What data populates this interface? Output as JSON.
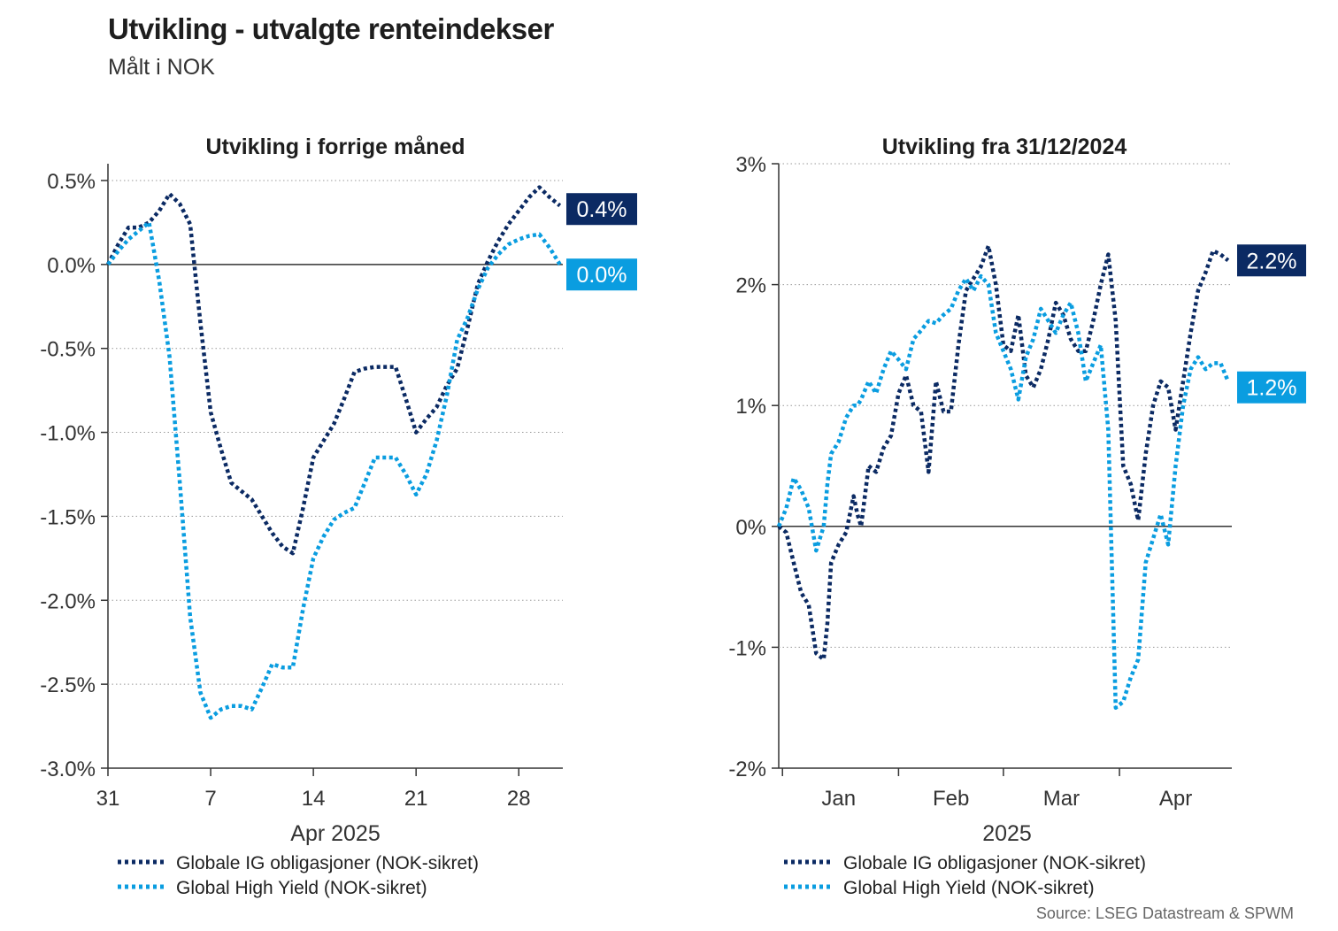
{
  "title": "Utvikling - utvalgte renteindekser",
  "subtitle": "Målt i NOK",
  "source": "Source: LSEG Datastream & SPWM",
  "colors": {
    "ig": "#0b2a63",
    "hy": "#0a9de0",
    "grid": "#999999",
    "axis": "#333333"
  },
  "chart_data": [
    {
      "type": "line",
      "title": "Utvikling i forrige måned",
      "xlabel": "Apr 2025",
      "ylabel": "",
      "x_unit": "days since 31 Mar 2025",
      "xlim": [
        0,
        31
      ],
      "ylim": [
        -3.0,
        0.6
      ],
      "yticks": [
        0.5,
        0.0,
        -0.5,
        -1.0,
        -1.5,
        -2.0,
        -2.5,
        -3.0
      ],
      "ytick_labels": [
        "0.5%",
        "0.0%",
        "-0.5%",
        "-1.0%",
        "-1.5%",
        "-2.0%",
        "-2.5%",
        "-3.0%"
      ],
      "xticks": [
        0,
        7,
        14,
        21,
        28
      ],
      "xtick_labels": [
        "31",
        "7",
        "14",
        "21",
        "28"
      ],
      "legend": [
        "Globale IG obligasjoner (NOK-sikret)",
        "Global High Yield (NOK-sikret)"
      ],
      "end_labels": [
        "0.4%",
        "0.0%"
      ],
      "series": [
        {
          "name": "Globale IG obligasjoner (NOK-sikret)",
          "x": [
            0,
            0.7,
            1.4,
            2.1,
            2.8,
            3.5,
            4.2,
            4.9,
            5.6,
            6.3,
            7,
            7.7,
            8.4,
            9.1,
            9.8,
            10.5,
            11.2,
            11.9,
            12.6,
            13.3,
            14,
            14.7,
            15.4,
            16.1,
            16.8,
            17.5,
            18.2,
            18.9,
            19.6,
            20.3,
            21,
            21.7,
            22.4,
            23.1,
            23.8,
            24.5,
            25.2,
            25.9,
            26.6,
            27.3,
            28,
            28.7,
            29.4,
            30.1,
            30.8
          ],
          "values": [
            0.0,
            0.12,
            0.22,
            0.22,
            0.25,
            0.32,
            0.42,
            0.36,
            0.24,
            -0.35,
            -0.88,
            -1.1,
            -1.3,
            -1.35,
            -1.4,
            -1.5,
            -1.6,
            -1.68,
            -1.72,
            -1.45,
            -1.15,
            -1.05,
            -0.95,
            -0.8,
            -0.64,
            -0.62,
            -0.61,
            -0.61,
            -0.61,
            -0.8,
            -1.0,
            -0.92,
            -0.85,
            -0.72,
            -0.62,
            -0.38,
            -0.12,
            0.02,
            0.14,
            0.24,
            0.32,
            0.4,
            0.46,
            0.4,
            0.35
          ]
        },
        {
          "name": "Global High Yield (NOK-sikret)",
          "x": [
            0,
            0.7,
            1.4,
            2.1,
            2.8,
            3.5,
            4.2,
            4.9,
            5.6,
            6.3,
            7,
            7.7,
            8.4,
            9.1,
            9.8,
            10.5,
            11.2,
            11.9,
            12.6,
            13.3,
            14,
            14.7,
            15.4,
            16.1,
            16.8,
            17.5,
            18.2,
            18.9,
            19.6,
            20.3,
            21,
            21.7,
            22.4,
            23.1,
            23.8,
            24.5,
            25.2,
            25.9,
            26.6,
            27.3,
            28,
            28.7,
            29.4,
            30.1,
            30.8
          ],
          "values": [
            0.0,
            0.08,
            0.15,
            0.2,
            0.25,
            -0.1,
            -0.55,
            -1.3,
            -2.1,
            -2.55,
            -2.7,
            -2.65,
            -2.63,
            -2.63,
            -2.65,
            -2.52,
            -2.38,
            -2.4,
            -2.4,
            -2.05,
            -1.75,
            -1.62,
            -1.52,
            -1.48,
            -1.45,
            -1.3,
            -1.15,
            -1.15,
            -1.15,
            -1.25,
            -1.37,
            -1.25,
            -1.05,
            -0.78,
            -0.45,
            -0.32,
            -0.15,
            -0.02,
            0.06,
            0.12,
            0.15,
            0.17,
            0.18,
            0.1,
            0.0
          ]
        }
      ]
    },
    {
      "type": "line",
      "title": "Utvikling fra 31/12/2024",
      "xlabel": "2025",
      "ylabel": "",
      "x_unit": "days since 31 Dec 2024",
      "xlim": [
        0,
        121
      ],
      "ylim": [
        -2,
        3
      ],
      "yticks": [
        3,
        2,
        1,
        0,
        -1,
        -2
      ],
      "ytick_labels": [
        "3%",
        "2%",
        "1%",
        "0%",
        "-1%",
        "-2%"
      ],
      "xtick_marks": [
        1,
        32,
        60,
        91
      ],
      "month_labels": [
        {
          "label": "Jan",
          "x": 16
        },
        {
          "label": "Feb",
          "x": 46
        },
        {
          "label": "Mar",
          "x": 75.5
        },
        {
          "label": "Apr",
          "x": 106
        }
      ],
      "legend": [
        "Globale IG obligasjoner (NOK-sikret)",
        "Global High Yield (NOK-sikret)"
      ],
      "end_labels": [
        "2.2%",
        "1.2%"
      ],
      "series": [
        {
          "name": "Globale IG obligasjoner (NOK-sikret)",
          "x": [
            0,
            2,
            4,
            6,
            8,
            10,
            12,
            13,
            14,
            16,
            18,
            20,
            21,
            22,
            24,
            26,
            28,
            30,
            32,
            34,
            36,
            38,
            40,
            42,
            44,
            46,
            48,
            50,
            52,
            54,
            56,
            58,
            60,
            62,
            64,
            66,
            68,
            70,
            72,
            74,
            76,
            78,
            80,
            82,
            84,
            86,
            88,
            90,
            92,
            94,
            96,
            98,
            100,
            102,
            104,
            106,
            108,
            110,
            112,
            114,
            116,
            118,
            120
          ],
          "values": [
            0.0,
            -0.05,
            -0.3,
            -0.55,
            -0.65,
            -1.05,
            -1.1,
            -0.8,
            -0.3,
            -0.15,
            -0.05,
            0.25,
            0.1,
            0.0,
            0.5,
            0.45,
            0.65,
            0.75,
            1.1,
            1.25,
            1.0,
            0.95,
            0.45,
            1.2,
            0.95,
            0.95,
            1.5,
            1.95,
            2.05,
            2.15,
            2.32,
            2.0,
            1.5,
            1.45,
            1.75,
            1.25,
            1.15,
            1.3,
            1.55,
            1.85,
            1.75,
            1.55,
            1.45,
            1.45,
            1.7,
            2.0,
            2.25,
            1.7,
            0.5,
            0.35,
            0.05,
            0.6,
            1.0,
            1.2,
            1.15,
            0.8,
            1.2,
            1.6,
            1.95,
            2.1,
            2.28,
            2.25,
            2.2
          ]
        },
        {
          "name": "Global High Yield (NOK-sikret)",
          "x": [
            0,
            2,
            4,
            6,
            8,
            10,
            12,
            13,
            14,
            16,
            18,
            20,
            21,
            22,
            24,
            26,
            28,
            30,
            32,
            34,
            36,
            38,
            40,
            42,
            44,
            46,
            48,
            50,
            52,
            54,
            56,
            58,
            60,
            62,
            64,
            66,
            68,
            70,
            72,
            74,
            76,
            78,
            80,
            82,
            84,
            86,
            88,
            90,
            92,
            94,
            96,
            98,
            100,
            102,
            104,
            106,
            108,
            110,
            112,
            114,
            116,
            118,
            120
          ],
          "values": [
            0.0,
            0.15,
            0.4,
            0.3,
            0.15,
            -0.2,
            0.0,
            0.35,
            0.6,
            0.7,
            0.9,
            1.0,
            1.0,
            1.05,
            1.2,
            1.1,
            1.3,
            1.45,
            1.38,
            1.3,
            1.55,
            1.62,
            1.7,
            1.68,
            1.75,
            1.8,
            1.95,
            2.05,
            1.95,
            2.07,
            2.0,
            1.6,
            1.45,
            1.3,
            1.05,
            1.4,
            1.55,
            1.8,
            1.7,
            1.6,
            1.75,
            1.85,
            1.6,
            1.2,
            1.35,
            1.5,
            0.8,
            -1.5,
            -1.45,
            -1.25,
            -1.1,
            -0.3,
            -0.1,
            0.1,
            -0.15,
            0.5,
            1.0,
            1.3,
            1.4,
            1.3,
            1.35,
            1.35,
            1.2
          ]
        }
      ]
    }
  ]
}
